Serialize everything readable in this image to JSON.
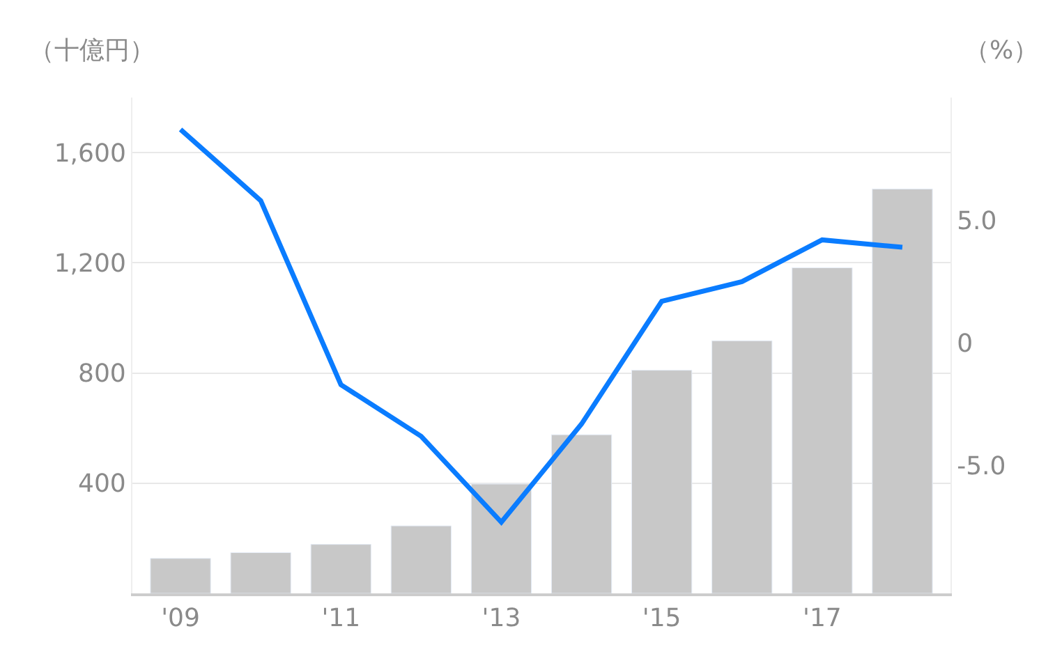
{
  "chart_data": {
    "type": "bar",
    "ylabel": "（十億円）",
    "y2label": "（%）",
    "categories": [
      "'09",
      null,
      "'11",
      null,
      "'13",
      null,
      "'15",
      null,
      "'17",
      null
    ],
    "series": [
      {
        "color": "#c8c8c8",
        "values": [
          127,
          148,
          178,
          245,
          397,
          576,
          810,
          917,
          1182,
          1468
        ]
      },
      {
        "type": "line",
        "axis": "y2",
        "color": "#0a7cff",
        "values": [
          8.7,
          5.8,
          -1.7,
          -3.8,
          -7.3,
          -3.3,
          1.7,
          2.5,
          4.2,
          3.9
        ]
      }
    ],
    "ylim": [
      0,
      1800
    ],
    "yticks": [
      {
        "value": 400,
        "label": "400"
      },
      {
        "value": 800,
        "label": "800"
      },
      {
        "value": 1200,
        "label": "1,200"
      },
      {
        "value": 1600,
        "label": "1,600"
      }
    ],
    "y2lim": [
      -10.2,
      10
    ],
    "y2ticks": [
      {
        "value": -5,
        "label": "-5.0"
      },
      {
        "value": 0,
        "label": "0"
      },
      {
        "value": 5,
        "label": "5.0"
      }
    ],
    "grid": "y",
    "marker": "none",
    "line_style": "solid"
  }
}
